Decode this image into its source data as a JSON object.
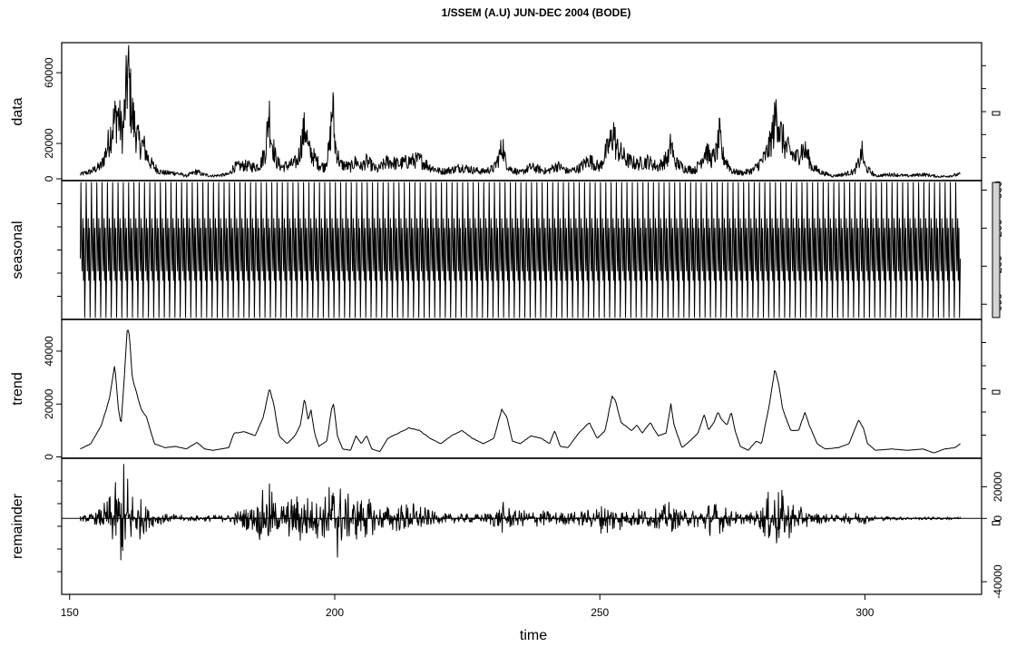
{
  "chart_data": {
    "type": "line",
    "title": "1/SSEM (A.U) JUN-DEC 2004 (BODE)",
    "xlabel": "time",
    "xlim": [
      152,
      318
    ],
    "x_ticks": [
      150,
      200,
      250,
      300
    ],
    "colors": {
      "line": "#000000",
      "range_bar_fill": "#d3d3d3",
      "background": "#ffffff"
    },
    "panels": [
      {
        "name": "data",
        "ylabel": "data",
        "ylim": [
          -1000,
          77000
        ],
        "y_ticks": [
          0,
          20000,
          60000
        ],
        "y_axis_side": "left",
        "style": "dense",
        "knots": [
          [
            152,
            3000
          ],
          [
            154,
            5000
          ],
          [
            156,
            9000
          ],
          [
            157,
            20000
          ],
          [
            158,
            35000
          ],
          [
            159,
            45000
          ],
          [
            160,
            30000
          ],
          [
            160.6,
            55000
          ],
          [
            161,
            74000
          ],
          [
            161.6,
            50000
          ],
          [
            162,
            40000
          ],
          [
            163,
            25000
          ],
          [
            164,
            22000
          ],
          [
            165,
            12000
          ],
          [
            166,
            8000
          ],
          [
            167,
            5000
          ],
          [
            168,
            4000
          ],
          [
            170,
            4000
          ],
          [
            172,
            2000
          ],
          [
            174,
            5000
          ],
          [
            175,
            3000
          ],
          [
            177,
            2000
          ],
          [
            180,
            3000
          ],
          [
            181,
            8000
          ],
          [
            183,
            9000
          ],
          [
            185,
            8000
          ],
          [
            186,
            10000
          ],
          [
            187,
            20000
          ],
          [
            187.6,
            47000
          ],
          [
            188,
            28000
          ],
          [
            189,
            12000
          ],
          [
            190,
            8000
          ],
          [
            192,
            10000
          ],
          [
            193,
            12000
          ],
          [
            194,
            30000
          ],
          [
            194.6,
            35000
          ],
          [
            195,
            20000
          ],
          [
            196,
            15000
          ],
          [
            197,
            10000
          ],
          [
            198,
            8000
          ],
          [
            199,
            20000
          ],
          [
            199.6,
            52000
          ],
          [
            200,
            25000
          ],
          [
            201,
            10000
          ],
          [
            203,
            8000
          ],
          [
            204,
            12000
          ],
          [
            205,
            8000
          ],
          [
            206,
            12000
          ],
          [
            208,
            6000
          ],
          [
            210,
            12000
          ],
          [
            212,
            10000
          ],
          [
            214,
            12000
          ],
          [
            216,
            13000
          ],
          [
            218,
            8000
          ],
          [
            220,
            5000
          ],
          [
            222,
            6000
          ],
          [
            224,
            8000
          ],
          [
            226,
            6000
          ],
          [
            228,
            5000
          ],
          [
            230,
            7000
          ],
          [
            231,
            15000
          ],
          [
            231.7,
            24000
          ],
          [
            232,
            14000
          ],
          [
            233,
            7000
          ],
          [
            235,
            4000
          ],
          [
            237,
            8000
          ],
          [
            239,
            6000
          ],
          [
            240,
            5000
          ],
          [
            242,
            9000
          ],
          [
            244,
            5000
          ],
          [
            246,
            7000
          ],
          [
            248,
            13000
          ],
          [
            249,
            10000
          ],
          [
            250,
            8000
          ],
          [
            252,
            25000
          ],
          [
            252.7,
            33000
          ],
          [
            253,
            22000
          ],
          [
            255,
            13000
          ],
          [
            257,
            10000
          ],
          [
            259,
            12000
          ],
          [
            261,
            8000
          ],
          [
            263,
            15000
          ],
          [
            263.5,
            26000
          ],
          [
            264,
            12000
          ],
          [
            266,
            7000
          ],
          [
            268,
            6000
          ],
          [
            269,
            12000
          ],
          [
            270,
            20000
          ],
          [
            271,
            13000
          ],
          [
            272,
            18000
          ],
          [
            272.6,
            30000
          ],
          [
            273,
            17000
          ],
          [
            275,
            5000
          ],
          [
            277,
            4000
          ],
          [
            279,
            6000
          ],
          [
            281,
            14000
          ],
          [
            282,
            22000
          ],
          [
            283,
            38000
          ],
          [
            283.4,
            48000
          ],
          [
            284,
            32000
          ],
          [
            285,
            22000
          ],
          [
            287,
            14000
          ],
          [
            288,
            20000
          ],
          [
            289,
            18000
          ],
          [
            290,
            8000
          ],
          [
            292,
            4000
          ],
          [
            294,
            2000
          ],
          [
            296,
            3000
          ],
          [
            298,
            5000
          ],
          [
            299,
            12000
          ],
          [
            299.4,
            19000
          ],
          [
            300,
            8000
          ],
          [
            302,
            2000
          ],
          [
            305,
            3000
          ],
          [
            308,
            2000
          ],
          [
            311,
            3000
          ],
          [
            314,
            1500
          ],
          [
            316,
            2000
          ],
          [
            318,
            3000
          ]
        ]
      },
      {
        "name": "seasonal",
        "ylabel": "seasonal",
        "ylim": [
          -760,
          700
        ],
        "y_ticks": [
          -600,
          -200,
          200,
          600
        ],
        "y_axis_side": "right",
        "style": "periodic",
        "period": 1,
        "amplitude_max": 680,
        "amplitude_min": -740
      },
      {
        "name": "trend",
        "ylabel": "trend",
        "ylim": [
          -500,
          52000
        ],
        "y_ticks": [
          0,
          20000,
          40000
        ],
        "y_axis_side": "left",
        "style": "smooth",
        "knots": [
          [
            152,
            3000
          ],
          [
            154,
            5000
          ],
          [
            156,
            12000
          ],
          [
            157.5,
            22000
          ],
          [
            158.5,
            35000
          ],
          [
            159.2,
            18000
          ],
          [
            159.7,
            12000
          ],
          [
            160.3,
            30000
          ],
          [
            160.9,
            49000
          ],
          [
            161.3,
            46000
          ],
          [
            161.8,
            30000
          ],
          [
            162.5,
            25000
          ],
          [
            163.5,
            18000
          ],
          [
            164.5,
            15000
          ],
          [
            166,
            5000
          ],
          [
            168,
            3500
          ],
          [
            170,
            4000
          ],
          [
            172,
            3000
          ],
          [
            174,
            5500
          ],
          [
            175.5,
            3000
          ],
          [
            177,
            2500
          ],
          [
            180,
            3500
          ],
          [
            181,
            9000
          ],
          [
            183,
            9500
          ],
          [
            185,
            8000
          ],
          [
            186.5,
            15000
          ],
          [
            187.7,
            26000
          ],
          [
            188.5,
            20000
          ],
          [
            189.5,
            8000
          ],
          [
            191,
            5000
          ],
          [
            192.5,
            8000
          ],
          [
            193.5,
            12000
          ],
          [
            194.3,
            22000
          ],
          [
            195,
            14000
          ],
          [
            195.5,
            18000
          ],
          [
            196.2,
            9000
          ],
          [
            197,
            4000
          ],
          [
            198.5,
            6000
          ],
          [
            199.4,
            18000
          ],
          [
            199.8,
            20000
          ],
          [
            200.5,
            8000
          ],
          [
            201.5,
            3000
          ],
          [
            203,
            2500
          ],
          [
            204,
            8000
          ],
          [
            205,
            5000
          ],
          [
            206,
            8000
          ],
          [
            207,
            3000
          ],
          [
            208.5,
            2000
          ],
          [
            210,
            7000
          ],
          [
            212,
            9000
          ],
          [
            214,
            11000
          ],
          [
            216,
            10000
          ],
          [
            218,
            7000
          ],
          [
            220,
            5000
          ],
          [
            222,
            8000
          ],
          [
            224,
            10000
          ],
          [
            226,
            7000
          ],
          [
            228,
            5000
          ],
          [
            230,
            7000
          ],
          [
            231.5,
            18000
          ],
          [
            232.5,
            15000
          ],
          [
            233.5,
            6000
          ],
          [
            235,
            5000
          ],
          [
            237,
            8000
          ],
          [
            239,
            7000
          ],
          [
            240.5,
            5000
          ],
          [
            241.5,
            10000
          ],
          [
            242.5,
            4000
          ],
          [
            244,
            3500
          ],
          [
            246,
            9000
          ],
          [
            248,
            13000
          ],
          [
            249.5,
            7000
          ],
          [
            251,
            10000
          ],
          [
            252.3,
            23000
          ],
          [
            253,
            21000
          ],
          [
            254,
            13000
          ],
          [
            256,
            10000
          ],
          [
            257,
            12000
          ],
          [
            258,
            9000
          ],
          [
            259.5,
            13000
          ],
          [
            261,
            8000
          ],
          [
            262.5,
            9000
          ],
          [
            263.4,
            20000
          ],
          [
            264,
            12000
          ],
          [
            265.5,
            3500
          ],
          [
            267,
            6000
          ],
          [
            268.5,
            9000
          ],
          [
            269.7,
            16000
          ],
          [
            270.5,
            10000
          ],
          [
            271.5,
            13000
          ],
          [
            272.3,
            17000
          ],
          [
            273,
            14000
          ],
          [
            274,
            12000
          ],
          [
            274.8,
            17000
          ],
          [
            275.5,
            10000
          ],
          [
            276.5,
            4000
          ],
          [
            278,
            2500
          ],
          [
            279.5,
            6000
          ],
          [
            280.5,
            5000
          ],
          [
            282,
            20000
          ],
          [
            283,
            33000
          ],
          [
            283.7,
            28000
          ],
          [
            284.5,
            18000
          ],
          [
            286,
            10000
          ],
          [
            287.5,
            10000
          ],
          [
            288.7,
            17000
          ],
          [
            289.5,
            12000
          ],
          [
            291,
            5000
          ],
          [
            292.5,
            3000
          ],
          [
            295,
            3500
          ],
          [
            297,
            5000
          ],
          [
            298.8,
            14000
          ],
          [
            299.7,
            11000
          ],
          [
            300.5,
            5000
          ],
          [
            302,
            2500
          ],
          [
            305,
            3000
          ],
          [
            308,
            2500
          ],
          [
            311,
            3000
          ],
          [
            313,
            1500
          ],
          [
            315,
            3000
          ],
          [
            317,
            3500
          ],
          [
            318,
            5000
          ]
        ]
      },
      {
        "name": "remainder",
        "ylabel": "remainder",
        "ylim": [
          -48000,
          38000
        ],
        "y_ticks": [
          -40000,
          0,
          20000
        ],
        "y_axis_side": "right",
        "style": "residual",
        "zero_line": true,
        "envelope": [
          [
            152,
            1500
          ],
          [
            155,
            4000
          ],
          [
            157,
            12000
          ],
          [
            159,
            25000
          ],
          [
            160.5,
            42000
          ],
          [
            161.5,
            25000
          ],
          [
            163,
            15000
          ],
          [
            165,
            6000
          ],
          [
            168,
            3000
          ],
          [
            172,
            2000
          ],
          [
            176,
            2000
          ],
          [
            180,
            2500
          ],
          [
            182,
            6000
          ],
          [
            185,
            9000
          ],
          [
            187.5,
            25000
          ],
          [
            189,
            10000
          ],
          [
            192,
            14000
          ],
          [
            194,
            20000
          ],
          [
            196,
            12000
          ],
          [
            198,
            14000
          ],
          [
            200,
            33000
          ],
          [
            202,
            16000
          ],
          [
            204,
            15000
          ],
          [
            206,
            14000
          ],
          [
            208,
            8000
          ],
          [
            212,
            9000
          ],
          [
            214,
            11000
          ],
          [
            216,
            10000
          ],
          [
            218,
            5000
          ],
          [
            220,
            3000
          ],
          [
            224,
            3000
          ],
          [
            228,
            3000
          ],
          [
            230,
            6000
          ],
          [
            232,
            11000
          ],
          [
            234,
            5000
          ],
          [
            237,
            6000
          ],
          [
            240,
            5000
          ],
          [
            244,
            4000
          ],
          [
            248,
            6000
          ],
          [
            252,
            12000
          ],
          [
            255,
            5000
          ],
          [
            258,
            7000
          ],
          [
            261,
            6000
          ],
          [
            263,
            11000
          ],
          [
            265,
            5000
          ],
          [
            268,
            6000
          ],
          [
            270,
            11000
          ],
          [
            272,
            11000
          ],
          [
            275,
            5000
          ],
          [
            278,
            3000
          ],
          [
            280,
            6000
          ],
          [
            283,
            24000
          ],
          [
            285,
            15000
          ],
          [
            288,
            7000
          ],
          [
            290,
            4000
          ],
          [
            295,
            2000
          ],
          [
            299,
            5000
          ],
          [
            301,
            2000
          ],
          [
            305,
            1200
          ],
          [
            310,
            1000
          ],
          [
            318,
            1000
          ]
        ]
      }
    ]
  }
}
